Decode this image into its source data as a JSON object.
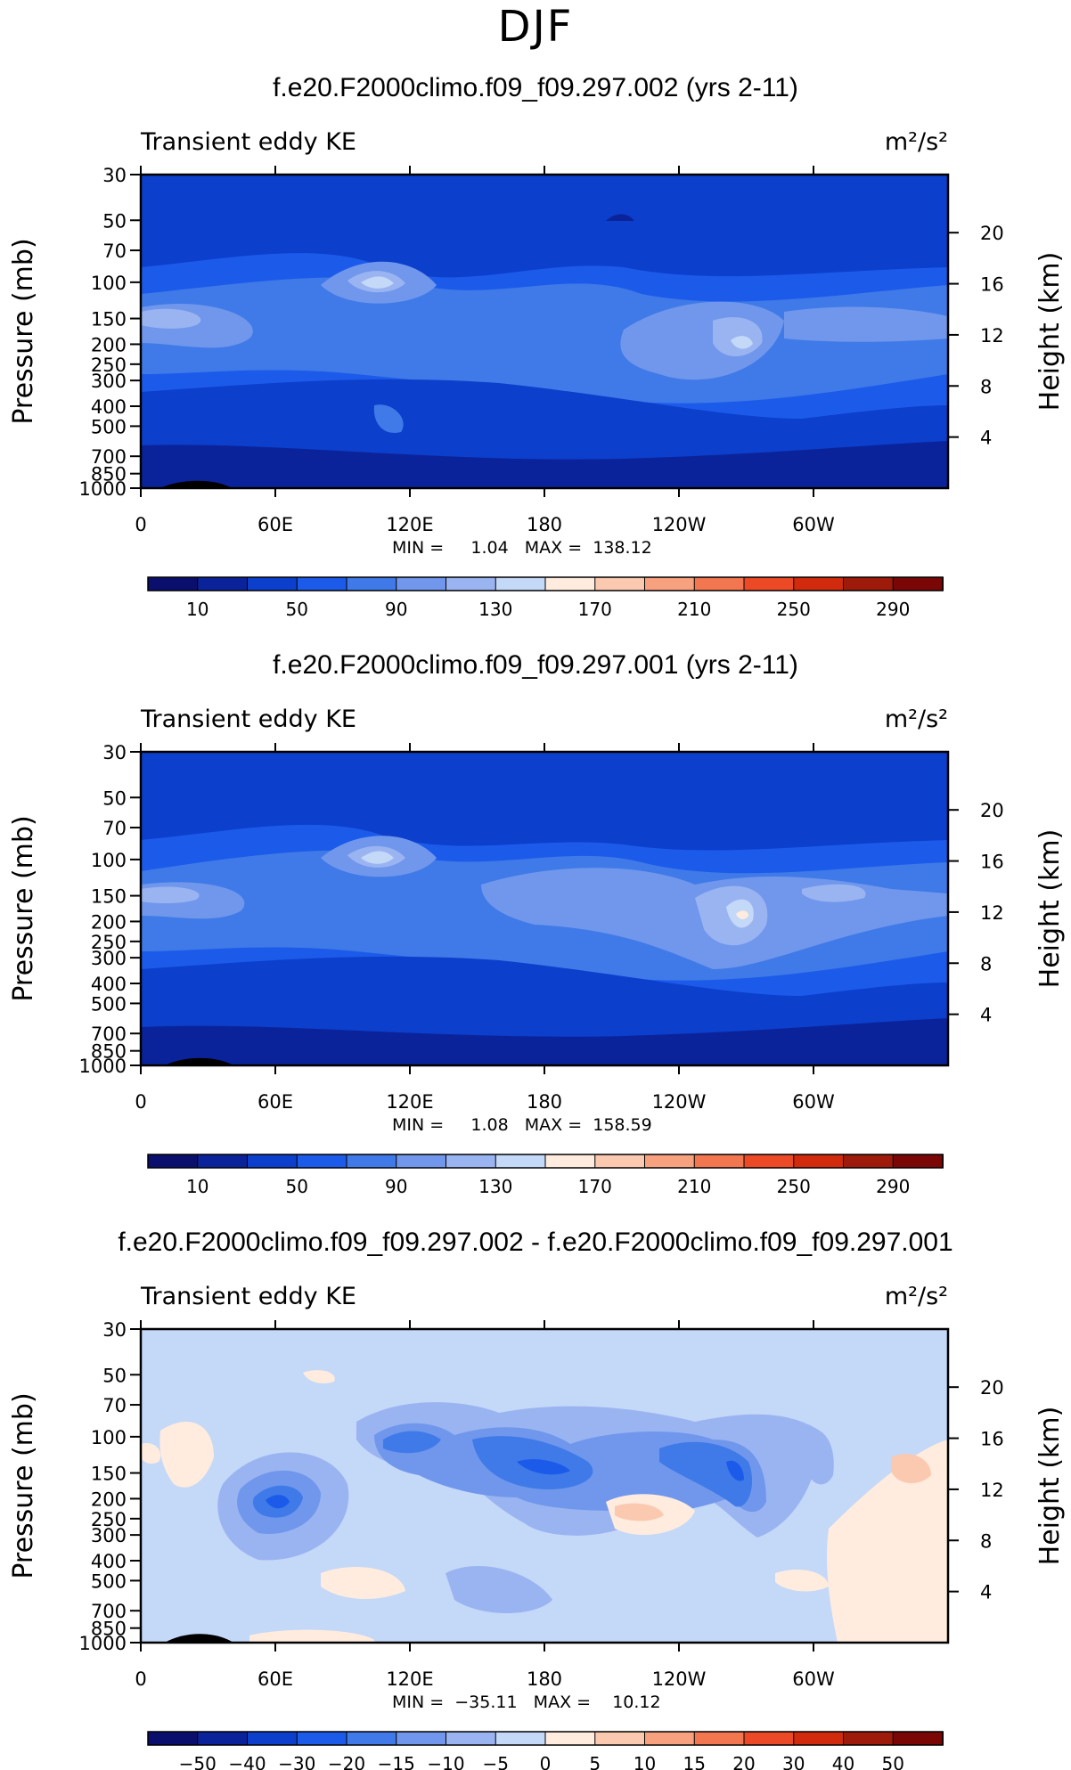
{
  "figure": {
    "title": "DJF"
  },
  "chart_data": [
    {
      "type": "heatmap",
      "title": "f.e20.F2000climo.f09_f09.297.002 (yrs 2-11)",
      "subtitle_left": "Transient eddy KE",
      "subtitle_right": "m²/s²",
      "ylabel": "Pressure (mb)",
      "ylabel_right": "Height (km)",
      "x_ticks": [
        "0",
        "60E",
        "120E",
        "180",
        "120W",
        "60W"
      ],
      "y_ticks": [
        "30",
        "50",
        "70",
        "100",
        "150",
        "200",
        "250",
        "300",
        "400",
        "500",
        "700",
        "850",
        "1000"
      ],
      "y_ticks_right": [
        "20",
        "16",
        "12",
        "8",
        "4"
      ],
      "stats": "MIN =     1.04   MAX =  138.12",
      "colorbar_labels": [
        "10",
        "50",
        "90",
        "130",
        "170",
        "210",
        "250",
        "290"
      ]
    },
    {
      "type": "heatmap",
      "title": "f.e20.F2000climo.f09_f09.297.001 (yrs 2-11)",
      "subtitle_left": "Transient eddy KE",
      "subtitle_right": "m²/s²",
      "ylabel": "Pressure (mb)",
      "ylabel_right": "Height (km)",
      "x_ticks": [
        "0",
        "60E",
        "120E",
        "180",
        "120W",
        "60W"
      ],
      "y_ticks": [
        "30",
        "50",
        "70",
        "100",
        "150",
        "200",
        "250",
        "300",
        "400",
        "500",
        "700",
        "850",
        "1000"
      ],
      "y_ticks_right": [
        "20",
        "16",
        "12",
        "8",
        "4"
      ],
      "stats": "MIN =     1.08   MAX =  158.59",
      "colorbar_labels": [
        "10",
        "50",
        "90",
        "130",
        "170",
        "210",
        "250",
        "290"
      ]
    },
    {
      "type": "heatmap",
      "title": "f.e20.F2000climo.f09_f09.297.002 - f.e20.F2000climo.f09_f09.297.001",
      "subtitle_left": "Transient eddy KE",
      "subtitle_right": "m²/s²",
      "ylabel": "Pressure (mb)",
      "ylabel_right": "Height (km)",
      "x_ticks": [
        "0",
        "60E",
        "120E",
        "180",
        "120W",
        "60W"
      ],
      "y_ticks": [
        "30",
        "50",
        "70",
        "100",
        "150",
        "200",
        "250",
        "300",
        "400",
        "500",
        "700",
        "850",
        "1000"
      ],
      "y_ticks_right": [
        "20",
        "16",
        "12",
        "8",
        "4"
      ],
      "stats": "MIN =  −35.11   MAX =    10.12",
      "colorbar_labels": [
        "−50",
        "−40",
        "−30",
        "−20",
        "−15",
        "−10",
        "−5",
        "0",
        "5",
        "10",
        "15",
        "20",
        "30",
        "40",
        "50"
      ]
    }
  ],
  "colorbar_colors": [
    "#0a0f6e",
    "#0b239a",
    "#0c3fcc",
    "#1c5bea",
    "#3f7ae8",
    "#7097ec",
    "#9ab4f1",
    "#c4d8f8",
    "#ffecde",
    "#fbc9b0",
    "#f7a17f",
    "#f2764f",
    "#ec4a26",
    "#d12a0c",
    "#9e1a0a",
    "#7a0606"
  ]
}
